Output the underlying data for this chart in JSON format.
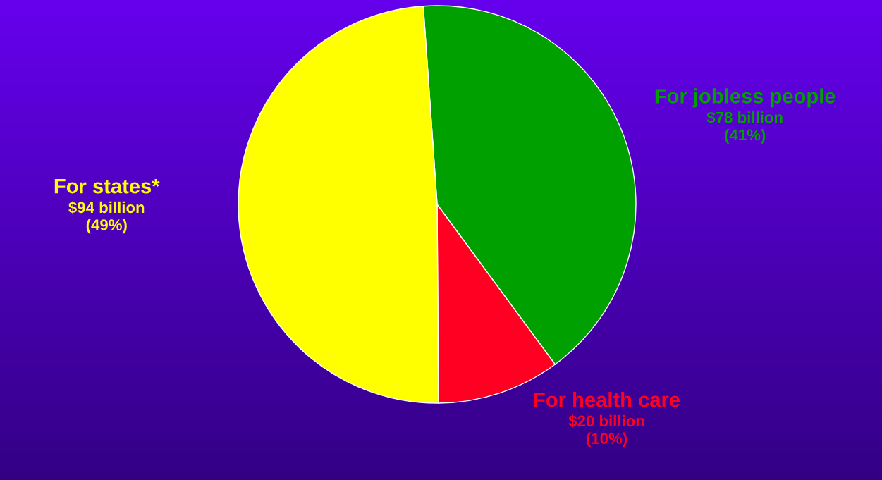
{
  "chart_data": {
    "type": "pie",
    "categories": [
      "For jobless people",
      "For health care",
      "For states*"
    ],
    "values": [
      41,
      10,
      49
    ],
    "colors": [
      "#00a000",
      "#ff0022",
      "#ffff00"
    ],
    "value_labels": [
      "$78 billion\n(41%)",
      "$20 billion\n(10%)",
      "$94 billion\n(49%)"
    ]
  }
}
